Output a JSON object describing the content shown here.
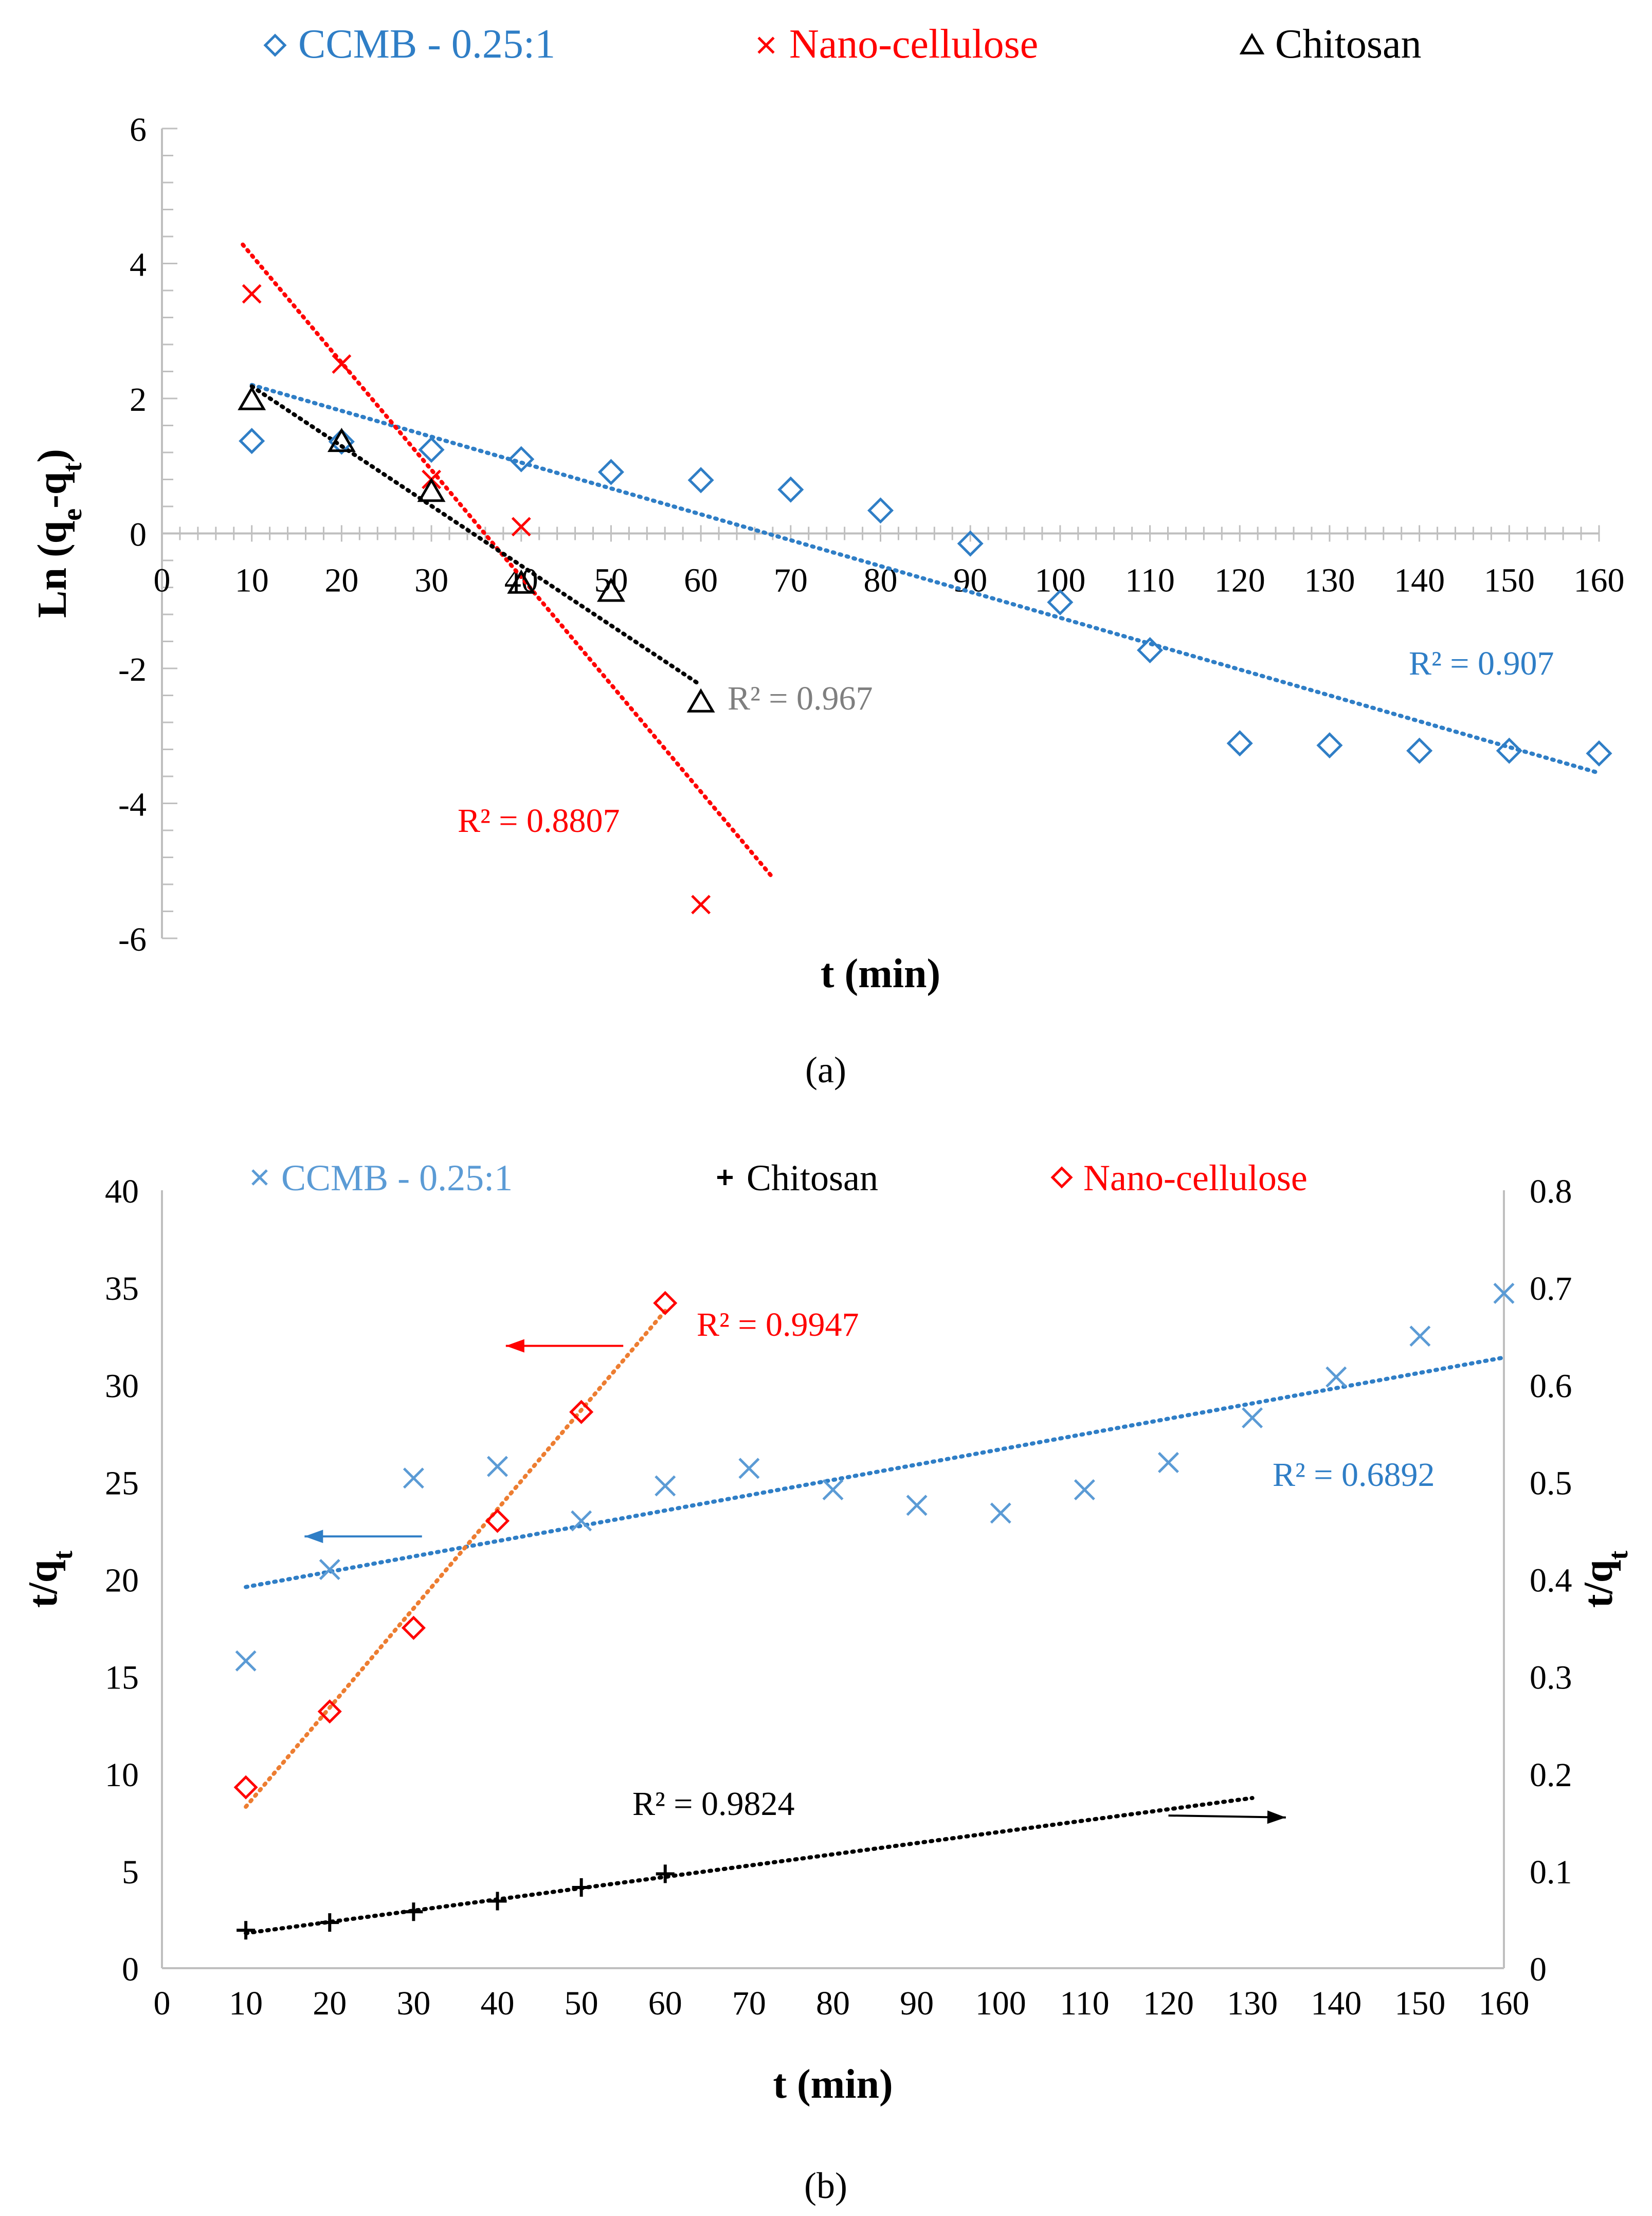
{
  "figure": {
    "panel_a_label": "(a)",
    "panel_b_label": "(b)"
  },
  "chart_data": [
    {
      "type": "scatter",
      "panel": "a",
      "title": "",
      "xlabel": "t (min)",
      "ylabel": "Ln (qe-qt)",
      "xlim": [
        0,
        160
      ],
      "ylim": [
        -6,
        6
      ],
      "x_ticks": [
        0,
        10,
        20,
        30,
        40,
        50,
        60,
        70,
        80,
        90,
        100,
        110,
        120,
        130,
        140,
        150,
        160
      ],
      "y_ticks": [
        -6,
        -4,
        -2,
        0,
        2,
        4,
        6
      ],
      "legend_position": "top",
      "series": [
        {
          "name": "CCMB - 0.25:1",
          "marker": "diamond",
          "color": "#2f7ec6",
          "x": [
            10,
            20,
            30,
            40,
            50,
            60,
            70,
            80,
            90,
            100,
            110,
            120,
            130,
            140,
            150,
            160
          ],
          "y": [
            1.37,
            1.36,
            1.24,
            1.1,
            0.91,
            0.79,
            0.65,
            0.34,
            -0.15,
            -1.02,
            -1.73,
            -3.11,
            -3.14,
            -3.22,
            -3.22,
            -3.26
          ],
          "trendline": {
            "x": [
              10,
              160
            ],
            "y": [
              2.2,
              -3.55
            ]
          },
          "r2_label": "R² = 0.907"
        },
        {
          "name": "Nano-cellulose",
          "marker": "x",
          "color": "#ff0000",
          "x": [
            10,
            20,
            30,
            40,
            60
          ],
          "y": [
            3.55,
            2.51,
            0.8,
            0.1,
            -5.5
          ],
          "trendline": {
            "x": [
              9,
              68
            ],
            "y": [
              4.28,
              -5.1
            ]
          },
          "r2_label": "R² = 0.8807"
        },
        {
          "name": "Chitosan",
          "marker": "triangle",
          "color": "#000000",
          "x": [
            10,
            20,
            30,
            40,
            50,
            60
          ],
          "y": [
            1.98,
            1.36,
            0.62,
            -0.74,
            -0.86,
            -2.5
          ],
          "trendline": {
            "x": [
              10,
              60
            ],
            "y": [
              2.18,
              -2.25
            ]
          },
          "r2_label": "R² = 0.967"
        }
      ]
    },
    {
      "type": "scatter",
      "panel": "b",
      "title": "",
      "xlabel": "t (min)",
      "ylabel": "t/qt",
      "ylabel_right": "t/qt",
      "xlim": [
        0,
        160
      ],
      "ylim": [
        0,
        40
      ],
      "y2lim": [
        0,
        0.8
      ],
      "x_ticks": [
        0,
        10,
        20,
        30,
        40,
        50,
        60,
        70,
        80,
        90,
        100,
        110,
        120,
        130,
        140,
        150,
        160
      ],
      "y_ticks": [
        0,
        5,
        10,
        15,
        20,
        25,
        30,
        35,
        40
      ],
      "y2_ticks": [
        "0",
        "0.1",
        "0.2",
        "0.3",
        "0.4",
        "0.5",
        "0.6",
        "0.7",
        "0.8"
      ],
      "legend_position": "top",
      "series": [
        {
          "name": "CCMB - 0.25:1",
          "marker": "x",
          "color": "#5b9bd5",
          "axis": "left",
          "x": [
            10,
            20,
            30,
            40,
            50,
            60,
            70,
            80,
            90,
            100,
            110,
            120,
            130,
            140,
            150,
            160
          ],
          "y": [
            15.8,
            20.5,
            25.2,
            25.8,
            23.0,
            24.8,
            25.7,
            24.6,
            23.8,
            23.4,
            24.6,
            26.0,
            28.3,
            30.4,
            32.5,
            34.7
          ],
          "trendline": {
            "x": [
              10,
              160
            ],
            "y": [
              19.6,
              31.4
            ]
          },
          "r2_label": "R² = 0.6892"
        },
        {
          "name": "Chitosan",
          "marker": "plus",
          "color": "#000000",
          "axis": "right",
          "x": [
            10,
            20,
            30,
            40,
            50,
            60
          ],
          "y": [
            0.039,
            0.047,
            0.058,
            0.069,
            0.083,
            0.097
          ],
          "trendline": {
            "x": [
              10,
              130
            ],
            "y": [
              0.036,
              0.175
            ]
          },
          "r2_label": "R² = 0.9824"
        },
        {
          "name": "Nano-cellulose",
          "marker": "diamond",
          "color": "#ff0000",
          "trend_color": "#ed7d31",
          "axis": "left",
          "x": [
            10,
            20,
            30,
            40,
            50,
            60
          ],
          "y": [
            9.3,
            13.2,
            17.5,
            23.0,
            28.6,
            34.2
          ],
          "trendline": {
            "x": [
              10,
              60
            ],
            "y": [
              8.3,
              33.8
            ]
          },
          "r2_label": "R² = 0.9947"
        }
      ]
    }
  ]
}
